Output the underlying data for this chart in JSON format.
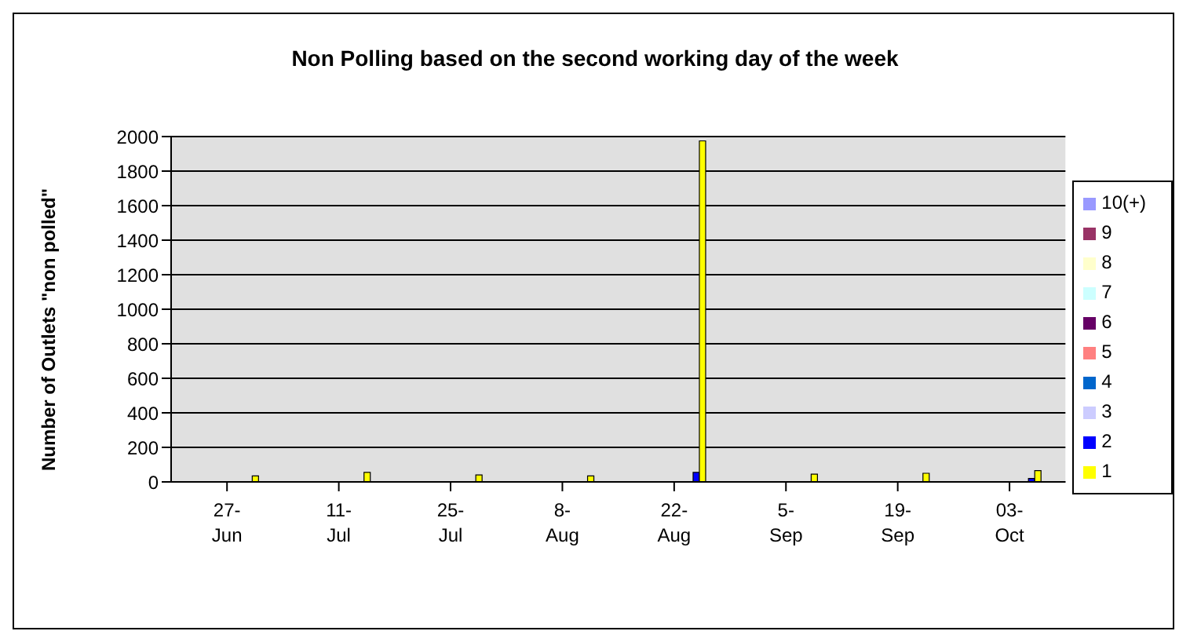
{
  "chart_data": {
    "type": "bar",
    "title": "Non Polling based on the second working day of the week",
    "ylabel": "Number of Outlets \"non polled\"",
    "categories": [
      "27-Jun",
      "11-Jul",
      "25-Jul",
      "8-Aug",
      "22-Aug",
      "5-Sep",
      "19-Sep",
      "03-Oct"
    ],
    "series": [
      {
        "name": "10(+)",
        "color": "#9999ff",
        "values": [
          0,
          0,
          0,
          0,
          0,
          0,
          0,
          0
        ]
      },
      {
        "name": "9",
        "color": "#993366",
        "values": [
          0,
          0,
          0,
          0,
          0,
          0,
          0,
          0
        ]
      },
      {
        "name": "8",
        "color": "#ffffcc",
        "values": [
          0,
          0,
          0,
          0,
          0,
          0,
          0,
          0
        ]
      },
      {
        "name": "7",
        "color": "#ccffff",
        "values": [
          0,
          0,
          0,
          0,
          0,
          0,
          0,
          0
        ]
      },
      {
        "name": "6",
        "color": "#660066",
        "values": [
          0,
          0,
          0,
          0,
          0,
          0,
          0,
          0
        ]
      },
      {
        "name": "5",
        "color": "#ff8080",
        "values": [
          0,
          0,
          0,
          0,
          0,
          0,
          0,
          0
        ]
      },
      {
        "name": "4",
        "color": "#0066cc",
        "values": [
          0,
          0,
          0,
          0,
          0,
          0,
          0,
          0
        ]
      },
      {
        "name": "3",
        "color": "#ccccff",
        "values": [
          0,
          0,
          0,
          0,
          0,
          0,
          0,
          0
        ]
      },
      {
        "name": "2",
        "color": "#0000ff",
        "values": [
          0,
          0,
          0,
          0,
          55,
          0,
          0,
          20
        ]
      },
      {
        "name": "1",
        "color": "#ffff00",
        "values": [
          35,
          55,
          40,
          35,
          1975,
          45,
          50,
          65
        ]
      }
    ],
    "ylim": [
      0,
      2000
    ],
    "yticks": [
      0,
      200,
      400,
      600,
      800,
      1000,
      1200,
      1400,
      1600,
      1800,
      2000
    ],
    "grid": "y",
    "legend": "right"
  }
}
